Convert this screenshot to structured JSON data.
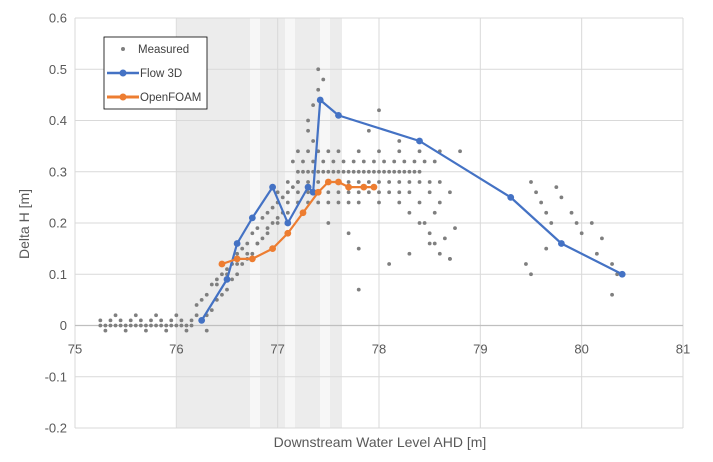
{
  "chart_data": {
    "type": "scatter",
    "title": "",
    "xlabel": "Downstream Water Level AHD [m]",
    "ylabel": "Delta H [m]",
    "xlim": [
      75,
      81
    ],
    "ylim": [
      -0.2,
      0.6
    ],
    "x_ticks": [
      "75",
      "76",
      "77",
      "78",
      "79",
      "80",
      "81"
    ],
    "y_ticks": [
      "-0.2",
      "-0.1",
      "0",
      "0.1",
      "0.2",
      "0.3",
      "0.4",
      "0.5",
      "0.6"
    ],
    "grid": true,
    "legend_position": "top-left",
    "series": [
      {
        "name": "Measured",
        "kind": "scatter",
        "color": "#7f7f7f",
        "x": [
          75.25,
          75.3,
          75.35,
          75.4,
          75.45,
          75.5,
          75.55,
          75.6,
          75.65,
          75.7,
          75.75,
          75.8,
          75.85,
          75.9,
          75.95,
          76.0,
          76.05,
          76.1,
          76.15,
          75.25,
          75.35,
          75.45,
          75.55,
          75.65,
          75.75,
          75.85,
          75.95,
          76.05,
          76.15,
          76.25,
          75.3,
          75.5,
          75.7,
          75.9,
          76.1,
          76.3,
          75.4,
          75.6,
          75.8,
          76.0,
          76.2,
          76.2,
          76.25,
          76.3,
          76.35,
          76.4,
          76.45,
          76.5,
          76.55,
          76.6,
          76.65,
          76.7,
          76.75,
          76.8,
          76.85,
          76.9,
          76.95,
          77.0,
          77.05,
          77.1,
          77.15,
          77.2,
          76.3,
          76.35,
          76.4,
          76.45,
          76.5,
          76.55,
          76.6,
          76.65,
          76.7,
          76.75,
          76.8,
          76.85,
          76.9,
          76.95,
          77.0,
          77.05,
          77.1,
          76.4,
          76.5,
          76.6,
          76.7,
          76.8,
          76.9,
          77.0,
          77.1,
          77.2,
          77.2,
          77.25,
          77.3,
          77.35,
          77.4,
          77.45,
          77.5,
          77.55,
          77.6,
          77.65,
          77.7,
          77.75,
          77.8,
          77.85,
          77.9,
          77.95,
          78.0,
          78.05,
          78.1,
          78.15,
          78.2,
          78.25,
          78.3,
          78.35,
          78.4,
          77.1,
          77.2,
          77.3,
          77.4,
          77.5,
          77.6,
          77.7,
          77.8,
          77.9,
          78.0,
          78.1,
          78.2,
          78.3,
          78.4,
          78.5,
          78.6,
          77.0,
          77.1,
          77.2,
          77.3,
          77.4,
          77.5,
          77.6,
          77.7,
          77.8,
          77.9,
          78.0,
          78.1,
          78.2,
          78.3,
          78.5,
          78.7,
          77.3,
          77.4,
          77.5,
          77.6,
          77.7,
          77.8,
          78.0,
          78.2,
          78.4,
          78.6,
          77.15,
          77.25,
          77.35,
          77.45,
          77.55,
          77.65,
          77.75,
          77.85,
          77.95,
          78.05,
          78.15,
          78.25,
          78.35,
          78.45,
          78.55,
          77.2,
          77.3,
          77.4,
          77.5,
          77.6,
          77.8,
          78.0,
          78.2,
          78.4,
          78.6,
          78.8,
          77.3,
          77.35,
          77.4,
          77.45,
          77.3,
          77.4,
          77.35,
          78.3,
          78.4,
          78.5,
          78.55,
          78.6,
          78.45,
          78.65,
          78.7,
          78.55,
          78.75,
          77.5,
          77.7,
          77.8,
          78.1,
          78.3,
          78.5,
          78.7,
          79.5,
          79.55,
          79.6,
          79.65,
          79.7,
          79.75,
          79.8,
          79.45,
          79.5,
          79.65,
          79.9,
          79.95,
          80.0,
          80.1,
          80.2,
          80.3,
          80.35,
          80.15,
          80.3,
          77.9,
          77.8,
          78.0,
          78.2
        ],
        "y": [
          0.0,
          0.0,
          0.0,
          0.0,
          0.0,
          0.0,
          0.0,
          0.0,
          0.0,
          0.0,
          0.0,
          0.0,
          0.0,
          0.0,
          0.0,
          0.0,
          0.0,
          0.0,
          0.0,
          0.01,
          0.01,
          0.01,
          0.01,
          0.01,
          0.01,
          0.01,
          0.01,
          0.01,
          0.01,
          0.01,
          -0.01,
          -0.01,
          -0.01,
          -0.01,
          -0.01,
          -0.01,
          0.02,
          0.02,
          0.02,
          0.02,
          0.02,
          0.04,
          0.05,
          0.06,
          0.08,
          0.09,
          0.1,
          0.11,
          0.12,
          0.14,
          0.15,
          0.16,
          0.18,
          0.19,
          0.21,
          0.22,
          0.23,
          0.24,
          0.25,
          0.26,
          0.27,
          0.28,
          0.02,
          0.03,
          0.05,
          0.06,
          0.07,
          0.09,
          0.1,
          0.12,
          0.13,
          0.14,
          0.16,
          0.17,
          0.19,
          0.2,
          0.21,
          0.22,
          0.24,
          0.08,
          0.1,
          0.12,
          0.14,
          0.16,
          0.18,
          0.2,
          0.22,
          0.24,
          0.3,
          0.3,
          0.3,
          0.3,
          0.3,
          0.3,
          0.3,
          0.3,
          0.3,
          0.3,
          0.3,
          0.3,
          0.3,
          0.3,
          0.3,
          0.3,
          0.3,
          0.3,
          0.3,
          0.3,
          0.3,
          0.3,
          0.3,
          0.3,
          0.3,
          0.28,
          0.28,
          0.28,
          0.28,
          0.28,
          0.28,
          0.28,
          0.28,
          0.28,
          0.28,
          0.28,
          0.28,
          0.28,
          0.28,
          0.28,
          0.28,
          0.26,
          0.26,
          0.26,
          0.26,
          0.26,
          0.26,
          0.26,
          0.26,
          0.26,
          0.26,
          0.26,
          0.26,
          0.26,
          0.26,
          0.26,
          0.26,
          0.24,
          0.24,
          0.24,
          0.24,
          0.24,
          0.24,
          0.24,
          0.24,
          0.24,
          0.24,
          0.32,
          0.32,
          0.32,
          0.32,
          0.32,
          0.32,
          0.32,
          0.32,
          0.32,
          0.32,
          0.32,
          0.32,
          0.32,
          0.32,
          0.32,
          0.34,
          0.34,
          0.34,
          0.34,
          0.34,
          0.34,
          0.34,
          0.34,
          0.34,
          0.34,
          0.34,
          0.4,
          0.43,
          0.46,
          0.48,
          0.38,
          0.5,
          0.36,
          0.22,
          0.2,
          0.18,
          0.16,
          0.14,
          0.2,
          0.17,
          0.13,
          0.22,
          0.19,
          0.2,
          0.18,
          0.15,
          0.12,
          0.14,
          0.16,
          0.13,
          0.28,
          0.26,
          0.24,
          0.22,
          0.2,
          0.27,
          0.25,
          0.12,
          0.1,
          0.15,
          0.22,
          0.2,
          0.18,
          0.2,
          0.17,
          0.12,
          0.1,
          0.14,
          0.06,
          0.38,
          0.07,
          0.42,
          0.36
        ]
      },
      {
        "name": "Flow 3D",
        "kind": "line-markers",
        "color": "#4472c4",
        "x": [
          76.25,
          76.5,
          76.6,
          76.75,
          76.95,
          77.1,
          77.3,
          77.35,
          77.42,
          77.6,
          78.4,
          79.3,
          79.8,
          80.4
        ],
        "y": [
          0.01,
          0.09,
          0.16,
          0.21,
          0.27,
          0.2,
          0.27,
          0.26,
          0.44,
          0.41,
          0.36,
          0.25,
          0.16,
          0.1
        ]
      },
      {
        "name": "OpenFOAM",
        "kind": "line-markers",
        "color": "#ed7d31",
        "x": [
          76.45,
          76.6,
          76.75,
          76.95,
          77.1,
          77.25,
          77.4,
          77.5,
          77.6,
          77.7,
          77.85,
          77.95
        ],
        "y": [
          0.12,
          0.13,
          0.13,
          0.15,
          0.18,
          0.22,
          0.26,
          0.28,
          0.28,
          0.27,
          0.27,
          0.27
        ]
      }
    ]
  }
}
